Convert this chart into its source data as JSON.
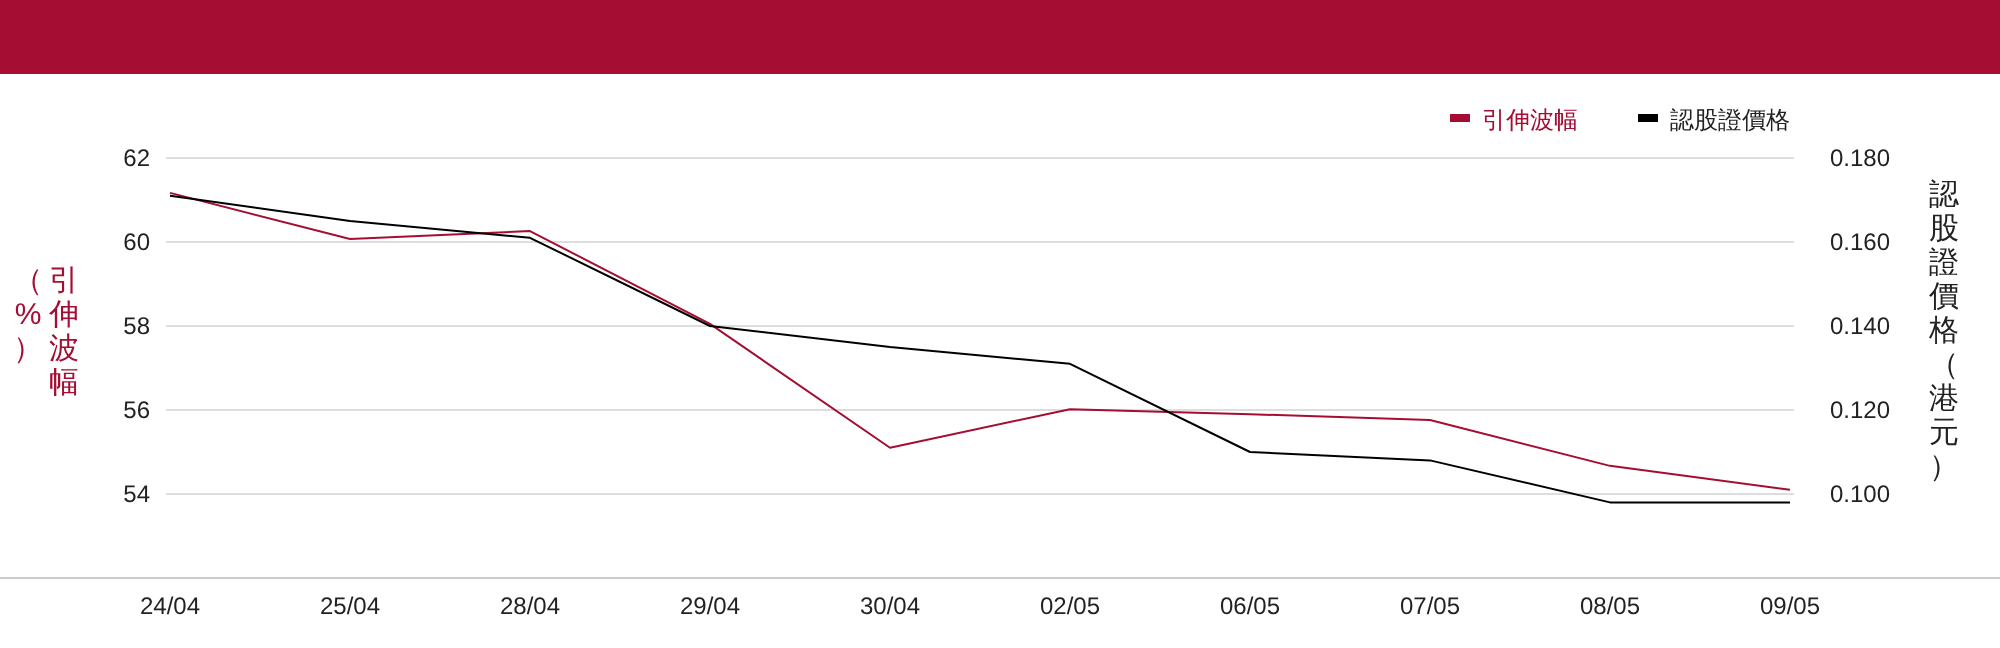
{
  "chart_data": {
    "type": "line",
    "categories": [
      "24/04",
      "25/04",
      "28/04",
      "29/04",
      "30/04",
      "02/05",
      "06/05",
      "07/05",
      "08/05",
      "09/05"
    ],
    "series": [
      {
        "name": "引伸波幅",
        "color": "#a50d32",
        "values": [
          61.17,
          60.07,
          60.26,
          58.05,
          55.1,
          56.02,
          55.9,
          55.76,
          54.67,
          54.1
        ]
      },
      {
        "name": "認股證價格",
        "color": "#000000",
        "axis": "y2",
        "values": [
          0.171,
          0.165,
          0.161,
          0.14,
          0.135,
          0.131,
          0.11,
          0.108,
          0.098,
          0.098
        ]
      }
    ],
    "ylabel": "引伸波幅（%）",
    "y2label": "認股證價格（港元）",
    "ylim": [
      52,
      62
    ],
    "yticks": [
      54,
      56,
      58,
      60,
      62
    ],
    "y2lim": [
      0.08,
      0.18
    ],
    "y2ticks": [
      {
        "value": 0.1,
        "label": "0.100"
      },
      {
        "value": 0.12,
        "label": "0.120"
      },
      {
        "value": 0.14,
        "label": "0.140"
      },
      {
        "value": 0.16,
        "label": "0.160"
      },
      {
        "value": 0.18,
        "label": "0.180"
      }
    ],
    "grid": "y",
    "legend": "top right",
    "marker": "none",
    "line_style": "solid"
  }
}
